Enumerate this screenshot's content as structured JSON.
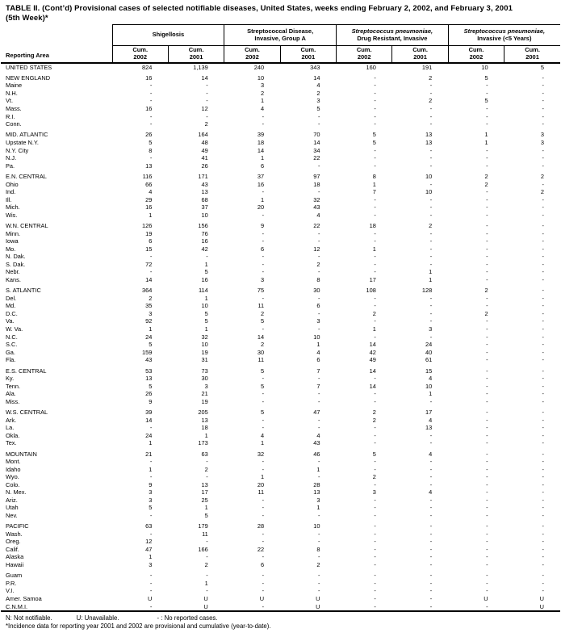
{
  "title": {
    "line1": "TABLE II. (Cont’d) Provisional cases of selected notifiable diseases, United States, weeks ending February 2, 2002, and February 3, 2001",
    "line2": "(5th Week)*"
  },
  "table": {
    "reporting_area_label": "Reporting Area",
    "column_groups": [
      {
        "id": "shigellosis",
        "line1": "Shigellosis",
        "line2": "",
        "italic_line1": false
      },
      {
        "id": "strep-disease-group-a",
        "line1": "Streptococcal Disease,",
        "line2": "Invasive, Group A",
        "italic_line1": false
      },
      {
        "id": "strep-pneumoniae-drug-resistant",
        "line1": "Streptococcus pneumoniae,",
        "line2": "Drug Resistant, Invasive",
        "italic_line1": true
      },
      {
        "id": "strep-pneumoniae-under-5",
        "line1": "Streptococcus pneumoniae,",
        "line2": "Invasive (<5 Years)",
        "italic_line1": true
      }
    ],
    "subcolumns": [
      {
        "line1": "Cum.",
        "line2": "2002"
      },
      {
        "line1": "Cum.",
        "line2": "2001"
      }
    ],
    "sections": [
      {
        "rows": [
          {
            "area": "UNITED STATES",
            "values": [
              "824",
              "1,139",
              "240",
              "343",
              "160",
              "191",
              "10",
              "5"
            ]
          }
        ]
      },
      {
        "rows": [
          {
            "area": "NEW ENGLAND",
            "values": [
              "16",
              "14",
              "10",
              "14",
              "-",
              "2",
              "5",
              "-"
            ]
          },
          {
            "area": "Maine",
            "values": [
              "-",
              "-",
              "3",
              "4",
              "-",
              "-",
              "-",
              "-"
            ]
          },
          {
            "area": "N.H.",
            "values": [
              "-",
              "-",
              "2",
              "2",
              "-",
              "-",
              "-",
              "-"
            ]
          },
          {
            "area": "Vt.",
            "values": [
              "-",
              "-",
              "1",
              "3",
              "-",
              "2",
              "5",
              "-"
            ]
          },
          {
            "area": "Mass.",
            "values": [
              "16",
              "12",
              "4",
              "5",
              "-",
              "-",
              "-",
              "-"
            ]
          },
          {
            "area": "R.I.",
            "values": [
              "-",
              "-",
              "-",
              "-",
              "-",
              "-",
              "-",
              "-"
            ]
          },
          {
            "area": "Conn.",
            "values": [
              "-",
              "2",
              "-",
              "-",
              "-",
              "-",
              "-",
              "-"
            ]
          }
        ]
      },
      {
        "rows": [
          {
            "area": "MID. ATLANTIC",
            "values": [
              "26",
              "164",
              "39",
              "70",
              "5",
              "13",
              "1",
              "3"
            ]
          },
          {
            "area": "Upstate N.Y.",
            "values": [
              "5",
              "48",
              "18",
              "14",
              "5",
              "13",
              "1",
              "3"
            ]
          },
          {
            "area": "N.Y. City",
            "values": [
              "8",
              "49",
              "14",
              "34",
              "-",
              "-",
              "-",
              "-"
            ]
          },
          {
            "area": "N.J.",
            "values": [
              "-",
              "41",
              "1",
              "22",
              "-",
              "-",
              "-",
              "-"
            ]
          },
          {
            "area": "Pa.",
            "values": [
              "13",
              "26",
              "6",
              "-",
              "-",
              "-",
              "-",
              "-"
            ]
          }
        ]
      },
      {
        "rows": [
          {
            "area": "E.N. CENTRAL",
            "values": [
              "116",
              "171",
              "37",
              "97",
              "8",
              "10",
              "2",
              "2"
            ]
          },
          {
            "area": "Ohio",
            "values": [
              "66",
              "43",
              "16",
              "18",
              "1",
              "-",
              "2",
              "-"
            ]
          },
          {
            "area": "Ind.",
            "values": [
              "4",
              "13",
              "-",
              "-",
              "7",
              "10",
              "-",
              "2"
            ]
          },
          {
            "area": "Ill.",
            "values": [
              "29",
              "68",
              "1",
              "32",
              "-",
              "-",
              "-",
              "-"
            ]
          },
          {
            "area": "Mich.",
            "values": [
              "16",
              "37",
              "20",
              "43",
              "-",
              "-",
              "-",
              "-"
            ]
          },
          {
            "area": "Wis.",
            "values": [
              "1",
              "10",
              "-",
              "4",
              "-",
              "-",
              "-",
              "-"
            ]
          }
        ]
      },
      {
        "rows": [
          {
            "area": "W.N. CENTRAL",
            "values": [
              "126",
              "156",
              "9",
              "22",
              "18",
              "2",
              "-",
              "-"
            ]
          },
          {
            "area": "Minn.",
            "values": [
              "19",
              "76",
              "-",
              "-",
              "-",
              "-",
              "-",
              "-"
            ]
          },
          {
            "area": "Iowa",
            "values": [
              "6",
              "16",
              "-",
              "-",
              "-",
              "-",
              "-",
              "-"
            ]
          },
          {
            "area": "Mo.",
            "values": [
              "15",
              "42",
              "6",
              "12",
              "1",
              "-",
              "-",
              "-"
            ]
          },
          {
            "area": "N. Dak.",
            "values": [
              "-",
              "-",
              "-",
              "-",
              "-",
              "-",
              "-",
              "-"
            ]
          },
          {
            "area": "S. Dak.",
            "values": [
              "72",
              "1",
              "-",
              "2",
              "-",
              "-",
              "-",
              "-"
            ]
          },
          {
            "area": "Nebr.",
            "values": [
              "-",
              "5",
              "-",
              "-",
              "-",
              "1",
              "-",
              "-"
            ]
          },
          {
            "area": "Kans.",
            "values": [
              "14",
              "16",
              "3",
              "8",
              "17",
              "1",
              "-",
              "-"
            ]
          }
        ]
      },
      {
        "rows": [
          {
            "area": "S. ATLANTIC",
            "values": [
              "364",
              "114",
              "75",
              "30",
              "108",
              "128",
              "2",
              "-"
            ]
          },
          {
            "area": "Del.",
            "values": [
              "2",
              "1",
              "-",
              "-",
              "-",
              "-",
              "-",
              "-"
            ]
          },
          {
            "area": "Md.",
            "values": [
              "35",
              "10",
              "11",
              "6",
              "-",
              "-",
              "-",
              "-"
            ]
          },
          {
            "area": "D.C.",
            "values": [
              "3",
              "5",
              "2",
              "-",
              "2",
              "-",
              "2",
              "-"
            ]
          },
          {
            "area": "Va.",
            "values": [
              "92",
              "5",
              "5",
              "3",
              "-",
              "-",
              "-",
              "-"
            ]
          },
          {
            "area": "W. Va.",
            "values": [
              "1",
              "1",
              "-",
              "-",
              "1",
              "3",
              "-",
              "-"
            ]
          },
          {
            "area": "N.C.",
            "values": [
              "24",
              "32",
              "14",
              "10",
              "-",
              "-",
              "-",
              "-"
            ]
          },
          {
            "area": "S.C.",
            "values": [
              "5",
              "10",
              "2",
              "1",
              "14",
              "24",
              "-",
              "-"
            ]
          },
          {
            "area": "Ga.",
            "values": [
              "159",
              "19",
              "30",
              "4",
              "42",
              "40",
              "-",
              "-"
            ]
          },
          {
            "area": "Fla.",
            "values": [
              "43",
              "31",
              "11",
              "6",
              "49",
              "61",
              "-",
              "-"
            ]
          }
        ]
      },
      {
        "rows": [
          {
            "area": "E.S. CENTRAL",
            "values": [
              "53",
              "73",
              "5",
              "7",
              "14",
              "15",
              "-",
              "-"
            ]
          },
          {
            "area": "Ky.",
            "values": [
              "13",
              "30",
              "-",
              "-",
              "-",
              "4",
              "-",
              "-"
            ]
          },
          {
            "area": "Tenn.",
            "values": [
              "5",
              "3",
              "5",
              "7",
              "14",
              "10",
              "-",
              "-"
            ]
          },
          {
            "area": "Ala.",
            "values": [
              "26",
              "21",
              "-",
              "-",
              "-",
              "1",
              "-",
              "-"
            ]
          },
          {
            "area": "Miss.",
            "values": [
              "9",
              "19",
              "-",
              "-",
              "-",
              "-",
              "-",
              "-"
            ]
          }
        ]
      },
      {
        "rows": [
          {
            "area": "W.S. CENTRAL",
            "values": [
              "39",
              "205",
              "5",
              "47",
              "2",
              "17",
              "-",
              "-"
            ]
          },
          {
            "area": "Ark.",
            "values": [
              "14",
              "13",
              "-",
              "-",
              "2",
              "4",
              "-",
              "-"
            ]
          },
          {
            "area": "La.",
            "values": [
              "-",
              "18",
              "-",
              "-",
              "-",
              "13",
              "-",
              "-"
            ]
          },
          {
            "area": "Okla.",
            "values": [
              "24",
              "1",
              "4",
              "4",
              "-",
              "-",
              "-",
              "-"
            ]
          },
          {
            "area": "Tex.",
            "values": [
              "1",
              "173",
              "1",
              "43",
              "-",
              "-",
              "-",
              "-"
            ]
          }
        ]
      },
      {
        "rows": [
          {
            "area": "MOUNTAIN",
            "values": [
              "21",
              "63",
              "32",
              "46",
              "5",
              "4",
              "-",
              "-"
            ]
          },
          {
            "area": "Mont.",
            "values": [
              "-",
              "-",
              "-",
              "-",
              "-",
              "-",
              "-",
              "-"
            ]
          },
          {
            "area": "Idaho",
            "values": [
              "1",
              "2",
              "-",
              "1",
              "-",
              "-",
              "-",
              "-"
            ]
          },
          {
            "area": "Wyo.",
            "values": [
              "-",
              "-",
              "1",
              "-",
              "2",
              "-",
              "-",
              "-"
            ]
          },
          {
            "area": "Colo.",
            "values": [
              "9",
              "13",
              "20",
              "28",
              "-",
              "-",
              "-",
              "-"
            ]
          },
          {
            "area": "N. Mex.",
            "values": [
              "3",
              "17",
              "11",
              "13",
              "3",
              "4",
              "-",
              "-"
            ]
          },
          {
            "area": "Ariz.",
            "values": [
              "3",
              "25",
              "-",
              "3",
              "-",
              "-",
              "-",
              "-"
            ]
          },
          {
            "area": "Utah",
            "values": [
              "5",
              "1",
              "-",
              "1",
              "-",
              "-",
              "-",
              "-"
            ]
          },
          {
            "area": "Nev.",
            "values": [
              "-",
              "5",
              "-",
              "-",
              "-",
              "-",
              "-",
              "-"
            ]
          }
        ]
      },
      {
        "rows": [
          {
            "area": "PACIFIC",
            "values": [
              "63",
              "179",
              "28",
              "10",
              "-",
              "-",
              "-",
              "-"
            ]
          },
          {
            "area": "Wash.",
            "values": [
              "-",
              "11",
              "-",
              "-",
              "-",
              "-",
              "-",
              "-"
            ]
          },
          {
            "area": "Oreg.",
            "values": [
              "12",
              "-",
              "-",
              "-",
              "-",
              "-",
              "-",
              "-"
            ]
          },
          {
            "area": "Calif.",
            "values": [
              "47",
              "166",
              "22",
              "8",
              "-",
              "-",
              "-",
              "-"
            ]
          },
          {
            "area": "Alaska",
            "values": [
              "1",
              "-",
              "-",
              "-",
              "-",
              "-",
              "-",
              "-"
            ]
          },
          {
            "area": "Hawaii",
            "values": [
              "3",
              "2",
              "6",
              "2",
              "-",
              "-",
              "-",
              "-"
            ]
          }
        ]
      },
      {
        "rows": [
          {
            "area": "Guam",
            "values": [
              "-",
              "-",
              "-",
              "-",
              "-",
              "-",
              "-",
              "-"
            ]
          },
          {
            "area": "P.R.",
            "values": [
              "-",
              "1",
              "-",
              "-",
              "-",
              "-",
              "-",
              "-"
            ]
          },
          {
            "area": "V.I.",
            "values": [
              "-",
              "-",
              "-",
              "-",
              "-",
              "-",
              "-",
              "-"
            ]
          },
          {
            "area": "Amer. Samoa",
            "values": [
              "U",
              "U",
              "U",
              "U",
              "-",
              "-",
              "U",
              "U"
            ]
          },
          {
            "area": "C.N.M.I.",
            "values": [
              "-",
              "U",
              "-",
              "U",
              "-",
              "-",
              "-",
              "U"
            ]
          }
        ]
      }
    ]
  },
  "footnotes": {
    "not_notifiable": "N: Not notifiable.",
    "unavailable": "U: Unavailable.",
    "no_reported_cases": "- : No reported cases.",
    "incidence": "*Incidence data for reporting year 2001 and 2002 are provisional and cumulative (year-to-date)."
  }
}
